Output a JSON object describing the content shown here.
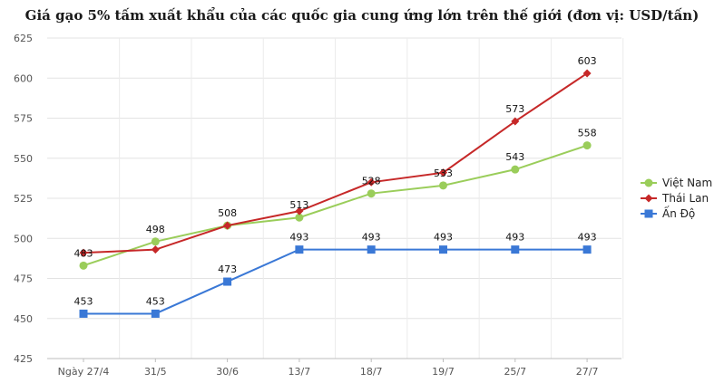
{
  "chart_data": {
    "type": "line",
    "title": "Giá gạo 5% tấm xuất khẩu của các quốc gia cung ứng lớn trên thế giới (đơn vị: USD/tấn)",
    "categories": [
      "Ngày 27/4",
      "31/5",
      "30/6",
      "13/7",
      "18/7",
      "19/7",
      "25/7",
      "27/7"
    ],
    "ylim": [
      425,
      625
    ],
    "yticks": [
      425,
      450,
      475,
      500,
      525,
      550,
      575,
      600,
      625
    ],
    "grid": true,
    "legend_position": "right",
    "series": [
      {
        "name": "Việt Nam",
        "color": "#9acd5a",
        "marker": "circle",
        "values": [
          483,
          498,
          508,
          513,
          528,
          533,
          543,
          558
        ],
        "labels": [
          "483",
          "498",
          "",
          "513",
          "528",
          "533",
          "543",
          "558"
        ]
      },
      {
        "name": "Thái Lan",
        "color": "#c62828",
        "marker": "diamond",
        "values": [
          491,
          493,
          508,
          517,
          535,
          541,
          573,
          603
        ],
        "labels": [
          "",
          "",
          "508",
          "",
          "",
          "",
          "573",
          "603"
        ]
      },
      {
        "name": "Ấn Độ",
        "color": "#3a78d6",
        "marker": "square",
        "values": [
          453,
          453,
          473,
          493,
          493,
          493,
          493,
          493
        ],
        "labels": [
          "453",
          "453",
          "473",
          "493",
          "493",
          "493",
          "493",
          "493"
        ]
      }
    ]
  }
}
